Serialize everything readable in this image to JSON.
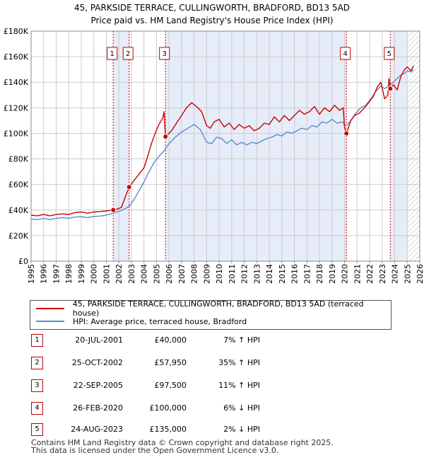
{
  "title_line1": "45, PARKSIDE TERRACE, CULLINGWORTH, BRADFORD, BD13 5AD",
  "title_line2": "Price paid vs. HM Land Registry's House Price Index (HPI)",
  "colors": {
    "property": "#cc0000",
    "hpi": "#5b8cc8",
    "shade": "#e6ecf8",
    "grid": "#cccccc",
    "hatch": "#b0b0b0",
    "marker_border": "#c00000"
  },
  "legend": {
    "property_label": "45, PARKSIDE TERRACE, CULLINGWORTH, BRADFORD, BD13 5AD (terraced house)",
    "hpi_label": "HPI: Average price, terraced house, Bradford"
  },
  "sales": [
    {
      "num": "1",
      "date": "20-JUL-2001",
      "price": "£40,000",
      "hpi": "7% ↑ HPI"
    },
    {
      "num": "2",
      "date": "25-OCT-2002",
      "price": "£57,950",
      "hpi": "35% ↑ HPI"
    },
    {
      "num": "3",
      "date": "22-SEP-2005",
      "price": "£97,500",
      "hpi": "11% ↑ HPI"
    },
    {
      "num": "4",
      "date": "26-FEB-2020",
      "price": "£100,000",
      "hpi": "6% ↓ HPI"
    },
    {
      "num": "5",
      "date": "24-AUG-2023",
      "price": "£135,000",
      "hpi": "2% ↓ HPI"
    }
  ],
  "footer": {
    "line1": "Contains HM Land Registry data © Crown copyright and database right 2025.",
    "line2": "This data is licensed under the Open Government Licence v3.0."
  },
  "chart_data": {
    "type": "line",
    "title": "Price paid vs. HM Land Registry's House Price Index (HPI)",
    "xlim": [
      1995,
      2026
    ],
    "ylim": [
      0,
      180000
    ],
    "x_ticks": [
      "1995",
      "1996",
      "1997",
      "1998",
      "1999",
      "2000",
      "2001",
      "2002",
      "2003",
      "2004",
      "2005",
      "2006",
      "2007",
      "2008",
      "2009",
      "2010",
      "2011",
      "2012",
      "2013",
      "2014",
      "2015",
      "2016",
      "2017",
      "2018",
      "2019",
      "2020",
      "2021",
      "2022",
      "2023",
      "2024",
      "2025",
      "2026"
    ],
    "y_ticks": [
      {
        "value": 0,
        "label": "£0"
      },
      {
        "value": 20000,
        "label": "£20K"
      },
      {
        "value": 40000,
        "label": "£40K"
      },
      {
        "value": 60000,
        "label": "£60K"
      },
      {
        "value": 80000,
        "label": "£80K"
      },
      {
        "value": 100000,
        "label": "£100K"
      },
      {
        "value": 120000,
        "label": "£120K"
      },
      {
        "value": 140000,
        "label": "£140K"
      },
      {
        "value": 160000,
        "label": "£160K"
      },
      {
        "value": 180000,
        "label": "£180K"
      }
    ],
    "shaded_ranges": [
      [
        2001.55,
        2002.82
      ],
      [
        2005.72,
        2020.15
      ],
      [
        2023.65,
        2025.0
      ]
    ],
    "future_hatch_from": 2025.0,
    "sale_markers": [
      {
        "label": "1",
        "x": 2001.55,
        "y": 40000
      },
      {
        "label": "2",
        "x": 2002.82,
        "y": 57950
      },
      {
        "label": "3",
        "x": 2005.72,
        "y": 97500
      },
      {
        "label": "4",
        "x": 2020.15,
        "y": 100000
      },
      {
        "label": "5",
        "x": 2023.65,
        "y": 135000
      }
    ],
    "series": [
      {
        "name": "45, PARKSIDE TERRACE, CULLINGWORTH, BRADFORD, BD13 5AD (terraced house)",
        "color": "#cc0000",
        "x": [
          1995.0,
          1995.5,
          1996.0,
          1996.5,
          1997.0,
          1997.5,
          1998.0,
          1998.5,
          1999.0,
          1999.5,
          2000.0,
          2000.5,
          2001.0,
          2001.55,
          2001.8,
          2002.2,
          2002.5,
          2002.82,
          2003.2,
          2003.6,
          2004.0,
          2004.3,
          2004.6,
          2004.9,
          2005.2,
          2005.5,
          2005.6,
          2005.72,
          2006.2,
          2006.6,
          2007.0,
          2007.4,
          2007.8,
          2008.2,
          2008.6,
          2009.0,
          2009.3,
          2009.6,
          2010.0,
          2010.4,
          2010.8,
          2011.2,
          2011.6,
          2012.0,
          2012.4,
          2012.8,
          2013.2,
          2013.6,
          2014.0,
          2014.4,
          2014.8,
          2015.2,
          2015.6,
          2016.0,
          2016.4,
          2016.8,
          2017.2,
          2017.6,
          2018.0,
          2018.4,
          2018.8,
          2019.2,
          2019.6,
          2019.9,
          2020.0,
          2020.15,
          2020.3,
          2020.5,
          2020.8,
          2021.2,
          2021.6,
          2022.0,
          2022.3,
          2022.6,
          2022.9,
          2023.2,
          2023.45,
          2023.55,
          2023.65,
          2023.9,
          2024.2,
          2024.5,
          2024.8,
          2025.0,
          2025.3,
          2025.5
        ],
        "y": [
          36000,
          35500,
          36500,
          35500,
          36500,
          37000,
          36500,
          38000,
          38500,
          37500,
          38500,
          38800,
          39300,
          40000,
          40500,
          42000,
          50000,
          57950,
          63000,
          68000,
          73000,
          82000,
          92000,
          100000,
          107000,
          112000,
          117000,
          97500,
          102000,
          108000,
          114000,
          120000,
          124000,
          121000,
          117000,
          106000,
          104000,
          109000,
          111000,
          105000,
          108000,
          103000,
          107000,
          104000,
          106000,
          102000,
          104000,
          108000,
          107000,
          113000,
          109000,
          114000,
          110000,
          114000,
          118000,
          115000,
          117000,
          121000,
          115000,
          120000,
          117000,
          122000,
          118000,
          120000,
          105000,
          100000,
          104000,
          110000,
          114000,
          116000,
          120000,
          125000,
          129000,
          136000,
          140000,
          127000,
          130000,
          143000,
          135000,
          138000,
          134000,
          145000,
          150000,
          152000,
          149000,
          153000
        ]
      },
      {
        "name": "HPI: Average price, terraced house, Bradford",
        "color": "#5b8cc8",
        "x": [
          1995.0,
          1995.5,
          1996.0,
          1996.5,
          1997.0,
          1997.5,
          1998.0,
          1998.5,
          1999.0,
          1999.5,
          2000.0,
          2000.5,
          2001.0,
          2001.55,
          2002.0,
          2002.5,
          2002.82,
          2003.2,
          2003.6,
          2004.0,
          2004.4,
          2004.8,
          2005.2,
          2005.5,
          2005.72,
          2006.0,
          2006.5,
          2007.0,
          2007.5,
          2008.0,
          2008.5,
          2009.0,
          2009.4,
          2009.8,
          2010.2,
          2010.6,
          2011.0,
          2011.4,
          2011.8,
          2012.2,
          2012.6,
          2013.0,
          2013.4,
          2013.8,
          2014.2,
          2014.6,
          2015.0,
          2015.4,
          2015.8,
          2016.2,
          2016.6,
          2017.0,
          2017.4,
          2017.8,
          2018.2,
          2018.6,
          2019.0,
          2019.4,
          2019.8,
          2020.15,
          2020.5,
          2020.9,
          2021.3,
          2021.7,
          2022.1,
          2022.5,
          2022.9,
          2023.2,
          2023.65,
          2024.0,
          2024.4,
          2024.8,
          2025.0,
          2025.3,
          2025.5
        ],
        "y": [
          33000,
          32500,
          33500,
          32500,
          33500,
          34000,
          33500,
          34500,
          34800,
          34000,
          35000,
          35300,
          36000,
          37500,
          39000,
          41000,
          43000,
          48000,
          55000,
          62000,
          70000,
          77000,
          82000,
          85000,
          88000,
          92000,
          97000,
          101000,
          104000,
          107000,
          103000,
          93000,
          92000,
          97000,
          96000,
          92000,
          95000,
          91000,
          93000,
          91000,
          93000,
          92000,
          94000,
          96000,
          97000,
          99000,
          98000,
          101000,
          100000,
          102000,
          104000,
          103000,
          106000,
          105000,
          109000,
          108000,
          111000,
          108000,
          109000,
          106000,
          110000,
          116000,
          120000,
          122000,
          127000,
          133000,
          137000,
          135000,
          138000,
          141000,
          145000,
          147000,
          149000,
          148000,
          150000
        ]
      }
    ]
  }
}
